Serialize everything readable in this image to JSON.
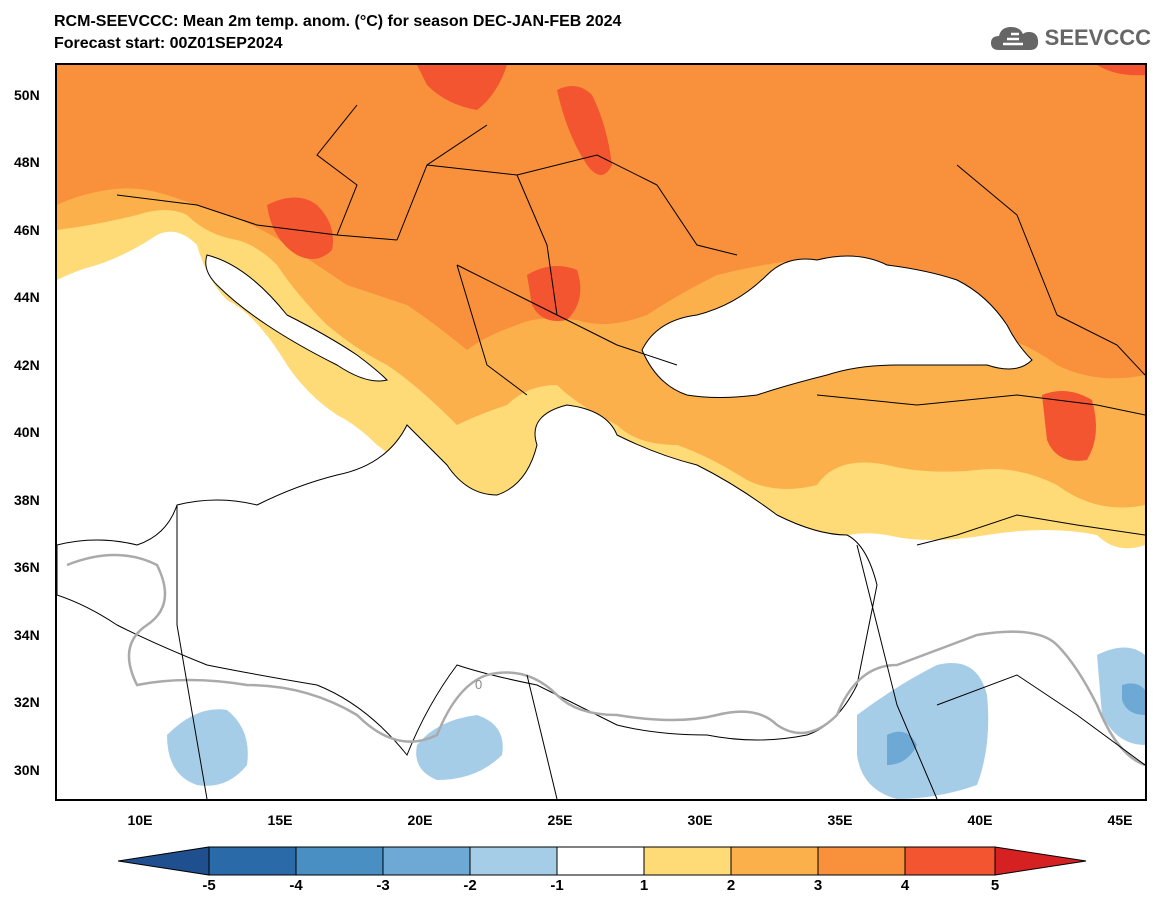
{
  "header": {
    "title_line1": "RCM-SEEVCCC: Mean 2m temp. anom. (°C) for season DEC-JAN-FEB 2024",
    "title_line2": "Forecast start: 00Z01SEP2024"
  },
  "logo": {
    "text": "SEEVCCC",
    "icon": "cloud-icon"
  },
  "map": {
    "lat_labels": [
      "50N",
      "48N",
      "46N",
      "44N",
      "42N",
      "40N",
      "38N",
      "36N",
      "34N",
      "32N",
      "30N"
    ],
    "lon_labels": [
      "10E",
      "15E",
      "20E",
      "25E",
      "30E",
      "35E",
      "40E",
      "45E"
    ],
    "contour_label": "0"
  },
  "colorbar": {
    "ticks": [
      "-5",
      "-4",
      "-3",
      "-2",
      "-1",
      "1",
      "2",
      "3",
      "4",
      "5"
    ],
    "colors": [
      "#1f4f8f",
      "#2b6aa8",
      "#4a8fc4",
      "#6ea9d6",
      "#a6cde8",
      "#ffffff",
      "#fedb77",
      "#fbb04c",
      "#f8903c",
      "#f25530",
      "#d62122"
    ]
  }
}
